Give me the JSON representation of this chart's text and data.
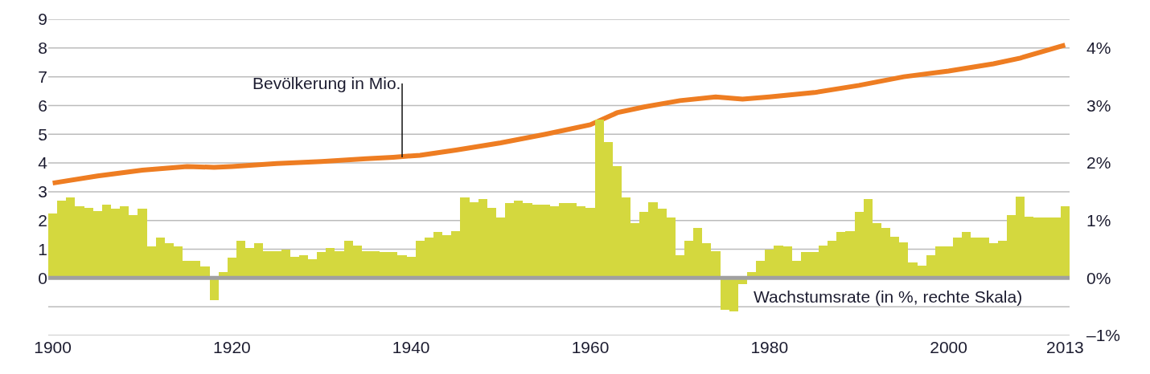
{
  "chart_data": {
    "type": "bar",
    "x": [
      1900,
      1901,
      1902,
      1903,
      1904,
      1905,
      1906,
      1907,
      1908,
      1909,
      1910,
      1911,
      1912,
      1913,
      1914,
      1915,
      1916,
      1917,
      1918,
      1919,
      1920,
      1921,
      1922,
      1923,
      1924,
      1925,
      1926,
      1927,
      1928,
      1929,
      1930,
      1931,
      1932,
      1933,
      1934,
      1935,
      1936,
      1937,
      1938,
      1939,
      1940,
      1941,
      1942,
      1943,
      1944,
      1945,
      1946,
      1947,
      1948,
      1949,
      1950,
      1951,
      1952,
      1953,
      1954,
      1955,
      1956,
      1957,
      1958,
      1959,
      1960,
      1961,
      1962,
      1963,
      1964,
      1965,
      1966,
      1967,
      1968,
      1969,
      1970,
      1971,
      1972,
      1973,
      1974,
      1975,
      1976,
      1977,
      1978,
      1979,
      1980,
      1981,
      1982,
      1983,
      1984,
      1985,
      1986,
      1987,
      1988,
      1989,
      1990,
      1991,
      1992,
      1993,
      1994,
      1995,
      1996,
      1997,
      1998,
      1999,
      2000,
      2001,
      2002,
      2003,
      2004,
      2005,
      2006,
      2007,
      2008,
      2009,
      2010,
      2011,
      2012,
      2013
    ],
    "series": [
      {
        "axis": "y2",
        "color": "#d4d83e",
        "values": [
          1.12,
          1.35,
          1.4,
          1.25,
          1.22,
          1.17,
          1.27,
          1.2,
          1.25,
          1.1,
          1.2,
          0.55,
          0.7,
          0.6,
          0.55,
          0.3,
          0.3,
          0.2,
          -0.38,
          0.1,
          0.35,
          0.65,
          0.52,
          0.6,
          0.47,
          0.47,
          0.5,
          0.37,
          0.4,
          0.32,
          0.45,
          0.52,
          0.47,
          0.65,
          0.57,
          0.47,
          0.47,
          0.45,
          0.45,
          0.4,
          0.37,
          0.65,
          0.7,
          0.8,
          0.75,
          0.82,
          1.4,
          1.32,
          1.37,
          1.22,
          1.05,
          1.3,
          1.35,
          1.3,
          1.27,
          1.27,
          1.25,
          1.3,
          1.3,
          1.25,
          1.22,
          2.75,
          2.37,
          1.95,
          1.4,
          0.95,
          1.15,
          1.32,
          1.2,
          1.05,
          0.4,
          0.65,
          0.87,
          0.6,
          0.47,
          -0.55,
          -0.58,
          -0.1,
          0.1,
          0.3,
          0.5,
          0.57,
          0.55,
          0.3,
          0.45,
          0.45,
          0.57,
          0.65,
          0.8,
          0.82,
          1.15,
          1.37,
          0.95,
          0.87,
          0.72,
          0.62,
          0.27,
          0.22,
          0.4,
          0.55,
          0.55,
          0.7,
          0.8,
          0.7,
          0.7,
          0.6,
          0.65,
          1.1,
          1.42,
          1.07,
          1.05,
          1.05,
          1.05,
          1.25
        ]
      },
      {
        "type": "line",
        "axis": "y",
        "color": "#ee7d22",
        "x": [
          1900,
          1905,
          1910,
          1915,
          1918,
          1920,
          1925,
          1930,
          1935,
          1938,
          1941,
          1945,
          1950,
          1955,
          1960,
          1963,
          1966,
          1970,
          1974,
          1977,
          1980,
          1985,
          1990,
          1995,
          2000,
          2005,
          2008,
          2013
        ],
        "values": [
          3.3,
          3.55,
          3.75,
          3.88,
          3.85,
          3.88,
          3.98,
          4.05,
          4.15,
          4.2,
          4.27,
          4.45,
          4.7,
          5.0,
          5.33,
          5.75,
          5.95,
          6.17,
          6.3,
          6.22,
          6.3,
          6.45,
          6.7,
          7.0,
          7.2,
          7.45,
          7.65,
          8.1
        ]
      }
    ],
    "annotations": [
      {
        "text": "Bevölkerung in Mio.",
        "x": 1939,
        "y": 4.2
      },
      "Wachstumsrate (in %, rechte Skala)"
    ],
    "xlim": [
      1899.5,
      2013.5
    ],
    "xticks": [
      1900,
      1920,
      1940,
      1960,
      1980,
      2000,
      2013
    ],
    "ylim": [
      -2,
      9
    ],
    "yticks": [
      {
        "value": -2,
        "label": null
      },
      {
        "value": -1,
        "label": null
      },
      0,
      1,
      2,
      3,
      4,
      5,
      6,
      7,
      8,
      9
    ],
    "y2lim": [
      -1,
      4.5
    ],
    "y2ticks": [
      {
        "value": -1,
        "label": "–1%"
      },
      {
        "value": 0,
        "label": "0%"
      },
      {
        "value": 1,
        "label": "1%"
      },
      {
        "value": 2,
        "label": "2%"
      },
      {
        "value": 3,
        "label": "3%"
      },
      {
        "value": 4,
        "label": "4%"
      }
    ],
    "ref_lines": [
      {
        "axis": "y",
        "value": 0,
        "color": "#a0a0a0"
      }
    ],
    "grid": "y"
  }
}
